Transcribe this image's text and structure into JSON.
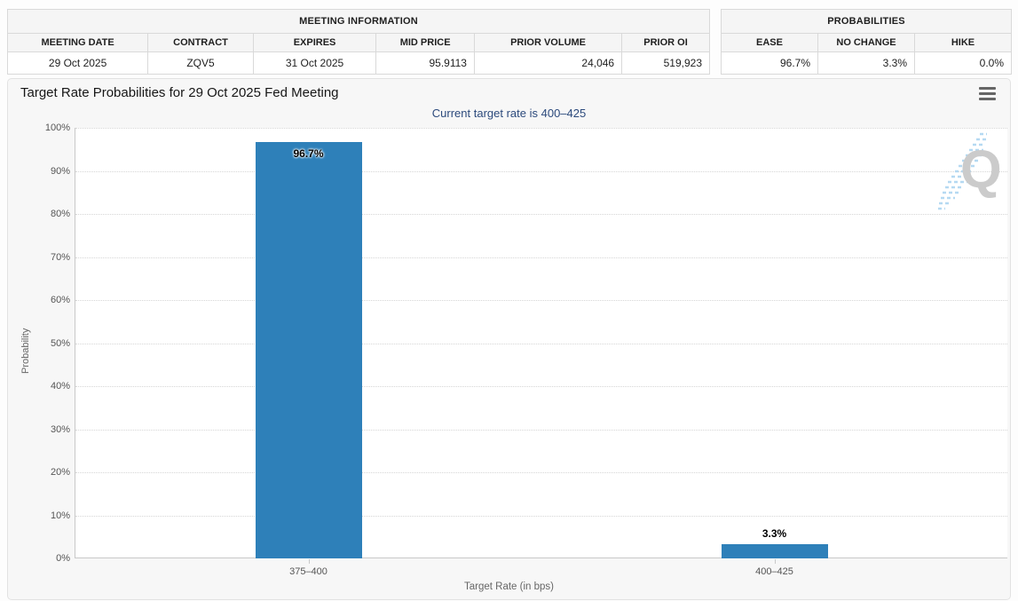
{
  "meeting_info": {
    "title": "MEETING INFORMATION",
    "columns": [
      "MEETING DATE",
      "CONTRACT",
      "EXPIRES",
      "MID PRICE",
      "PRIOR VOLUME",
      "PRIOR OI"
    ],
    "values": [
      "29 Oct 2025",
      "ZQV5",
      "31 Oct 2025",
      "95.9113",
      "24,046",
      "519,923"
    ]
  },
  "probabilities": {
    "title": "PROBABILITIES",
    "columns": [
      "EASE",
      "NO CHANGE",
      "HIKE"
    ],
    "values": [
      "96.7%",
      "3.3%",
      "0.0%"
    ]
  },
  "chart_data": {
    "type": "bar",
    "title": "Target Rate Probabilities for 29 Oct 2025 Fed Meeting",
    "subtitle": "Current target rate is 400–425",
    "categories": [
      "375–400",
      "400–425"
    ],
    "values": [
      96.7,
      3.3
    ],
    "value_labels": [
      "96.7%",
      "3.3%"
    ],
    "xlabel": "Target Rate (in bps)",
    "ylabel": "Probability",
    "ylim": [
      0,
      100
    ],
    "yticks": [
      "0%",
      "10%",
      "20%",
      "30%",
      "40%",
      "50%",
      "60%",
      "70%",
      "80%",
      "90%",
      "100%"
    ],
    "grid": "horizontal-dotted",
    "legend": "none",
    "bar_color": "#2e80b9",
    "subtitle_color": "#2c4a7c",
    "menu_icon": "hamburger-icon",
    "watermark_letter": "Q"
  }
}
